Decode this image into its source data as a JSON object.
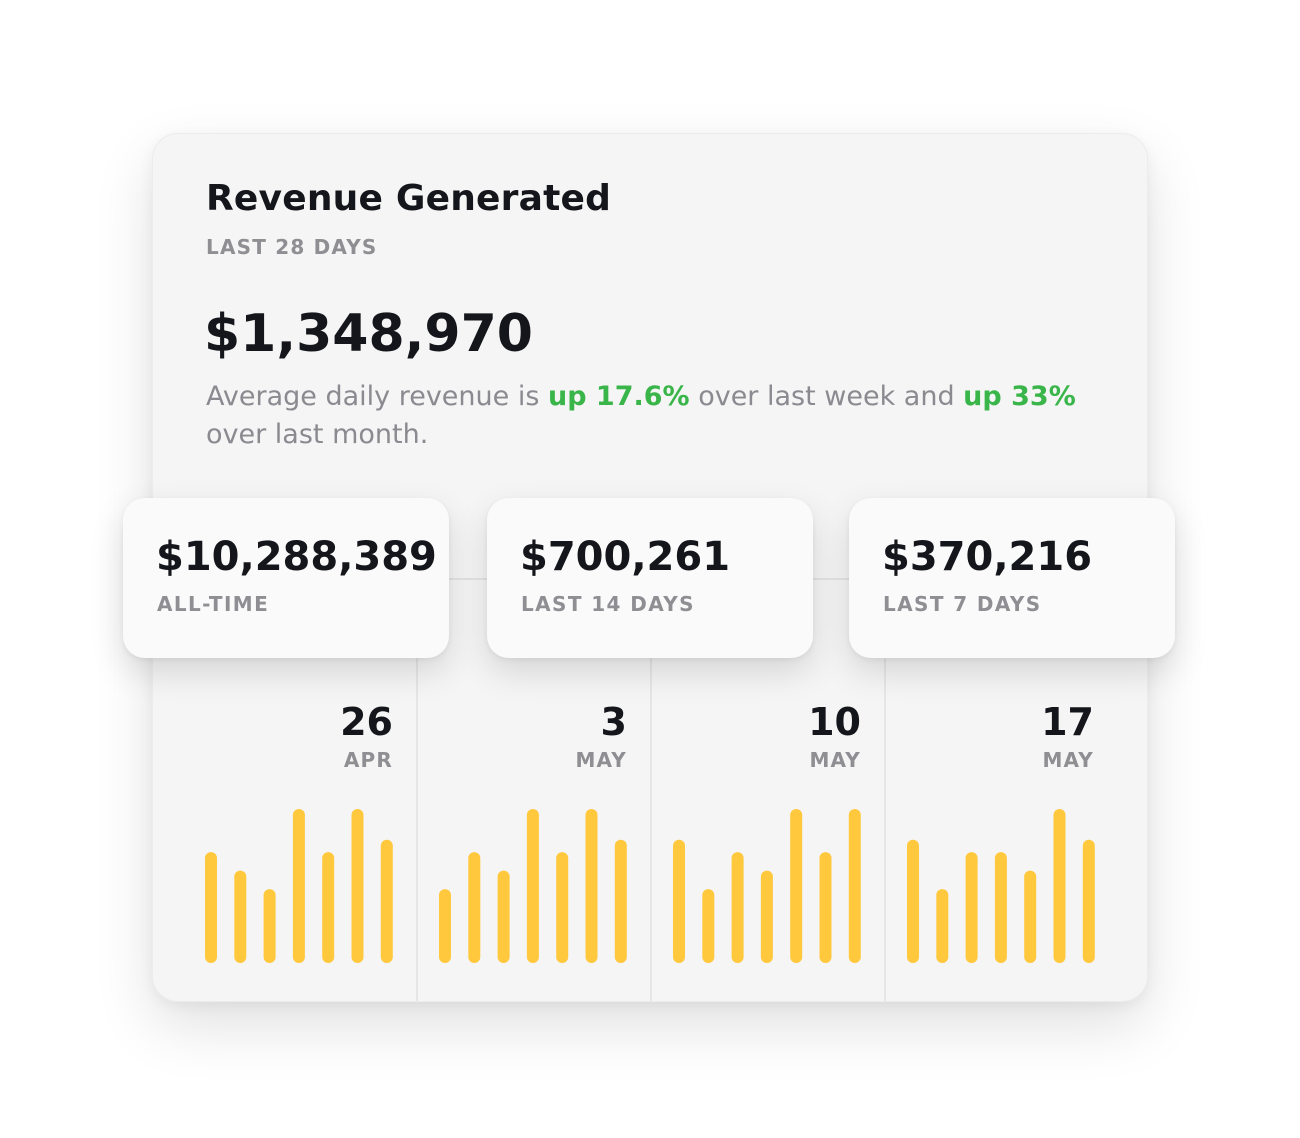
{
  "header": {
    "title": "Revenue Generated",
    "subtitle": "LAST 28 DAYS",
    "total": "$1,348,970",
    "desc_prefix": "Average daily revenue is ",
    "desc_up_week": "up 17.6%",
    "desc_middle": " over last week and ",
    "desc_up_month": "up 33%",
    "desc_suffix": " over last month."
  },
  "stats": [
    {
      "value": "$10,288,389",
      "label": "ALL-TIME"
    },
    {
      "value": "$700,261",
      "label": "LAST 14 DAYS"
    },
    {
      "value": "$370,216",
      "label": "LAST 7 DAYS"
    }
  ],
  "weeks": [
    {
      "day": "26",
      "month": "APR"
    },
    {
      "day": "3",
      "month": "MAY"
    },
    {
      "day": "10",
      "month": "MAY"
    },
    {
      "day": "17",
      "month": "MAY"
    }
  ],
  "colors": {
    "bar": "#ffc83d",
    "positive": "#3ab54a",
    "text": "#14161b",
    "muted": "#8e8e93"
  },
  "chart_data": {
    "type": "bar",
    "title": "Revenue Generated",
    "grid": false,
    "groups": [
      "26 APR",
      "3 MAY",
      "10 MAY",
      "17 MAY"
    ],
    "values_relative": [
      [
        0.72,
        0.6,
        0.48,
        1.0,
        0.72,
        1.0,
        0.8
      ],
      [
        0.48,
        0.72,
        0.6,
        1.0,
        0.72,
        1.0,
        0.8
      ],
      [
        0.8,
        0.48,
        0.72,
        0.6,
        1.0,
        0.72,
        1.0
      ],
      [
        0.8,
        0.48,
        0.72,
        0.72,
        0.6,
        1.0,
        0.8
      ]
    ]
  }
}
